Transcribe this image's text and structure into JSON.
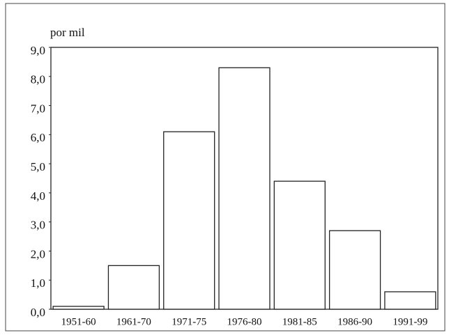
{
  "chart_data": {
    "type": "bar",
    "y_label": "por mil",
    "categories": [
      "1951-60",
      "1961-70",
      "1971-75",
      "1976-80",
      "1981-85",
      "1986-90",
      "1991-99"
    ],
    "values": [
      0.1,
      1.5,
      6.1,
      8.3,
      4.4,
      2.7,
      0.6
    ],
    "color": "#ffffff",
    "ylim": [
      0,
      9
    ],
    "yticks": [
      {
        "value": 0,
        "label": "0,0"
      },
      {
        "value": 1,
        "label": "1,0"
      },
      {
        "value": 2,
        "label": "2,0"
      },
      {
        "value": 3,
        "label": "3,0"
      },
      {
        "value": 4,
        "label": "4,0"
      },
      {
        "value": 5,
        "label": "5,0"
      },
      {
        "value": 6,
        "label": "6,0"
      },
      {
        "value": 7,
        "label": "7,0"
      },
      {
        "value": 8,
        "label": "8,0"
      },
      {
        "value": 9,
        "label": "9,0"
      }
    ],
    "grid": false
  }
}
